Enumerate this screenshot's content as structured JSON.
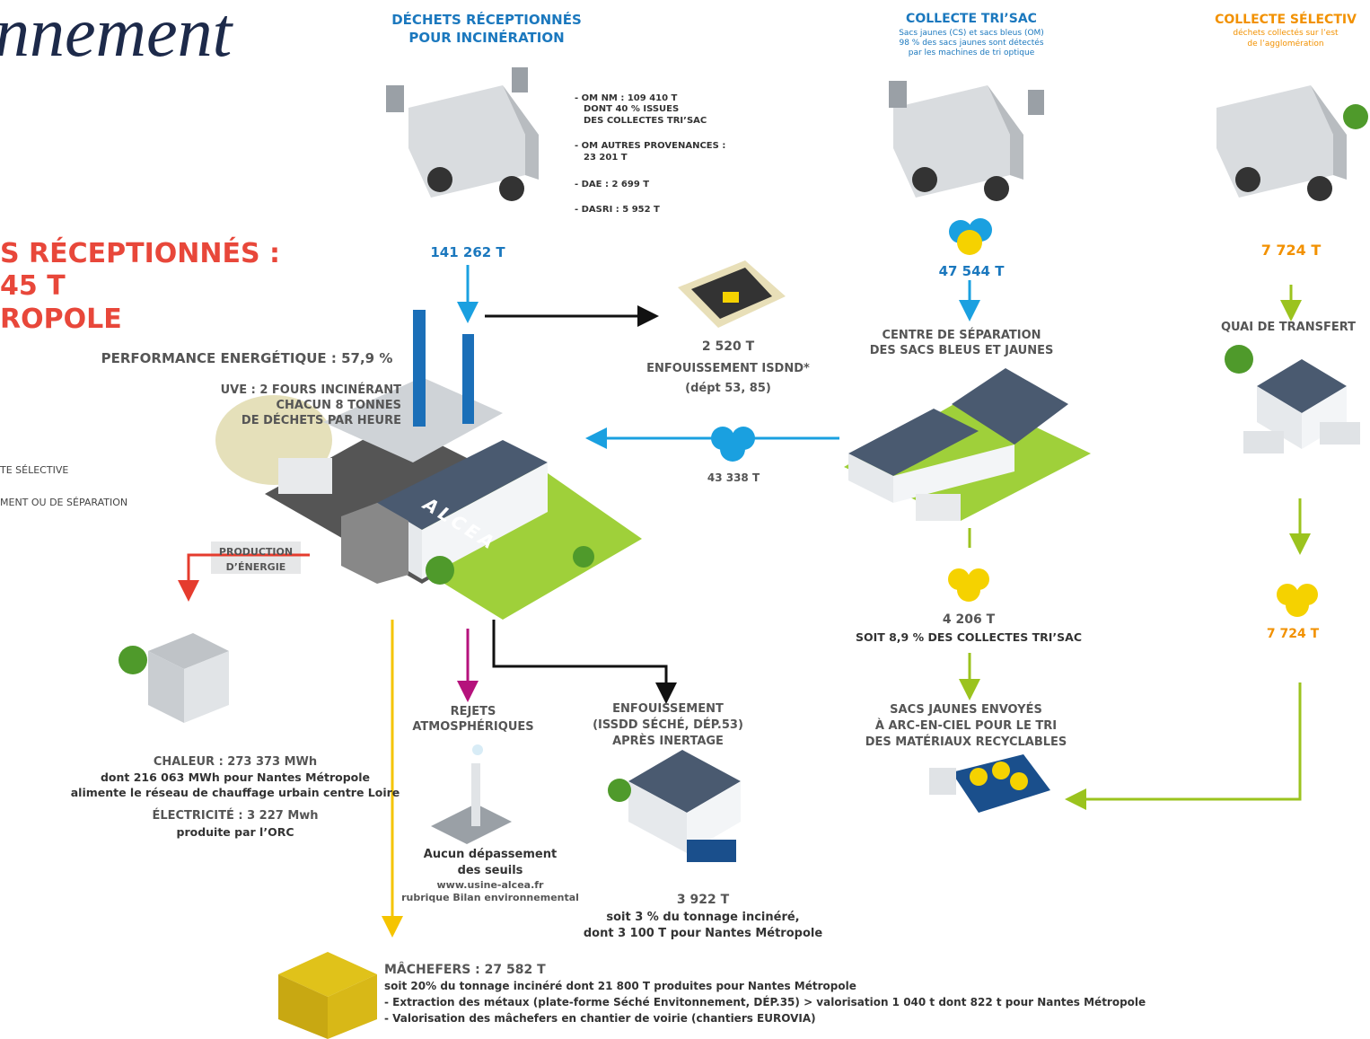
{
  "brand_fragment": "nnement",
  "headline": [
    "S RÉCEPTIONNÉS :",
    "45 T",
    "ROPOLE"
  ],
  "legend": [
    "TE SÉLECTIVE",
    "MENT OU DE SÉPARATION"
  ],
  "incineration_input": {
    "title": [
      "DÉCHETS RÉCEPTIONNÉS",
      "POUR INCINÉRATION"
    ],
    "details": [
      "- OM NM : 109 410 T",
      "DONT 40 % ISSUES",
      "DES COLLECTES TRI’SAC",
      "- OM AUTRES PROVENANCES :",
      "23 201 T",
      "- DAE : 2 699 T",
      "- DASRI : 5 952 T"
    ],
    "total": "141 262 T"
  },
  "trisac": {
    "title": "COLLECTE TRI’SAC",
    "subtitle": [
      "Sacs jaunes (CS) et sacs bleus (OM)",
      "98 % des sacs jaunes sont détectés",
      "par les machines de tri optique"
    ],
    "total": "47 544 T",
    "separation_center": [
      "CENTRE DE SÉPARATION",
      "DES SACS BLEUS ET JAUNES"
    ],
    "yellow_bags": {
      "tonnage": "4 206 T",
      "share": "SOIT 8,9 % DES COLLECTES TRI’SAC"
    },
    "recycling": [
      "SACS JAUNES ENVOYÉS",
      "À ARC-EN-CIEL POUR LE TRI",
      "DES MATÉRIAUX RECYCLABLES"
    ]
  },
  "selective": {
    "title": "COLLECTE SÉLECTIV",
    "subtitle": [
      "déchets collectés sur l’est",
      "de l’agglomération"
    ],
    "total": "7 724 T",
    "transfer": "QUAI DE TRANSFERT",
    "yellow_bags": "7 724 T"
  },
  "landfill_isdnd": {
    "tonnage": "2 520 T",
    "label": [
      "ENFOUISSEMENT ISDND*",
      "(dépt 53, 85)"
    ]
  },
  "blue_bags": "43 338 T",
  "plant": {
    "performance": "PERFORMANCE ENERGÉTIQUE : 57,9 %",
    "description": [
      "UVE : 2 FOURS INCINÉRANT",
      "CHACUN 8 TONNES",
      "DE DÉCHETS PAR HEURE"
    ],
    "name": "ALCEA",
    "energy_label": [
      "PRODUCTION",
      "D’ÉNERGIE"
    ]
  },
  "energy": [
    "CHALEUR : 273 373 MWh",
    "dont 216 063 MWh pour Nantes Métropole",
    "alimente le réseau de chauffage urbain centre Loire",
    "ÉLECTRICITÉ : 3 227 Mwh",
    "produite par l’ORC"
  ],
  "emissions": {
    "label": [
      "REJETS",
      "ATMOSPHÉRIQUES"
    ],
    "note": [
      "Aucun dépassement",
      "des seuils",
      "www.usine-alcea.fr",
      "rubrique Bilan environnemental"
    ]
  },
  "hazardous_landfill": {
    "label": [
      "ENFOUISSEMENT",
      "(ISSDD SÉCHÉ, DÉP.53)",
      "APRÈS INERTAGE"
    ],
    "tonnage": "3 922 T",
    "notes": [
      "soit 3 % du tonnage incinéré,",
      "dont 3 100 T pour Nantes Métropole"
    ]
  },
  "bottom_ash": {
    "title": "MÂCHEFERS : 27 582 T",
    "lines": [
      "soit 20% du tonnage incinéré dont 21 800 T produites pour Nantes Métropole",
      "- Extraction des métaux (plate-forme Séché Envitonnement, DÉP.35) > valorisation 1 040 t dont 822 t pour Nantes Métropole",
      "- Valorisation des mâchefers en chantier de voirie (chantiers EUROVIA)"
    ]
  }
}
